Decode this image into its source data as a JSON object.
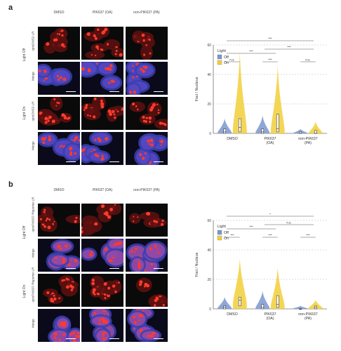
{
  "panels": [
    {
      "letter": "a",
      "columns": [
        "DMSO",
        "PIK637 (OA)",
        "non-PIK637 (PA)"
      ],
      "groups": [
        "Light Off",
        "Light On"
      ],
      "rows": [
        "optoDNS2-LR",
        "Merge",
        "optoDNS2-LR",
        "Merge"
      ],
      "chart_data": {
        "type": "violin",
        "ylabel": "Foci / Nucleus",
        "ylim": [
          0,
          60
        ],
        "yticks": [
          0,
          20,
          40,
          60
        ],
        "categories": [
          "DMSO",
          "PIK637\n(OA)",
          "non-PIK637\n(PA)"
        ],
        "legend": {
          "title": "Light",
          "entries": [
            "Off",
            "On"
          ],
          "placement": "top-left"
        },
        "series": [
          {
            "name": "Off",
            "color": "#7b96cf",
            "median": [
              1,
              1,
              0
            ],
            "q1": [
              0,
              0,
              0
            ],
            "q3": [
              3,
              3,
              1
            ],
            "max": [
              10,
              12,
              3
            ]
          },
          {
            "name": "On",
            "color": "#f2cf3a",
            "median": [
              4,
              3,
              0
            ],
            "q1": [
              1,
              1,
              0
            ],
            "q3": [
              10,
              13,
              2
            ],
            "max": [
              55,
              46,
              8
            ]
          }
        ],
        "significance": [
          "***",
          "***",
          "***",
          "n.s.",
          "***",
          "n.s."
        ]
      }
    },
    {
      "letter": "b",
      "columns": [
        "DMSO",
        "PIK637 (OA)",
        "non-PIK637 (PA)"
      ],
      "groups": [
        "Light Off",
        "Light On"
      ],
      "rows": [
        "optoPIK637-Reporter-LR",
        "Merge",
        "optoPIK637-Reporter-LR",
        "Merge"
      ],
      "chart_data": {
        "type": "violin",
        "ylabel": "Foci / Nucleus",
        "ylim": [
          0,
          60
        ],
        "yticks": [
          0,
          20,
          40,
          60
        ],
        "categories": [
          "DMSO",
          "PIK637\n(OA)",
          "non-PIK637\n(PA)"
        ],
        "legend": {
          "title": "Light",
          "entries": [
            "Off",
            "On"
          ],
          "placement": "top-left"
        },
        "series": [
          {
            "name": "Off",
            "color": "#7b96cf",
            "median": [
              1,
              1,
              0
            ],
            "q1": [
              0,
              0,
              0
            ],
            "q3": [
              2,
              3,
              0
            ],
            "max": [
              8,
              12,
              2
            ]
          },
          {
            "name": "On",
            "color": "#f2cf3a",
            "median": [
              6,
              3,
              1
            ],
            "q1": [
              2,
              1,
              0
            ],
            "q3": [
              8,
              9,
              2
            ],
            "max": [
              34,
              28,
              6
            ]
          }
        ],
        "significance": [
          "***",
          "*",
          "n.s.",
          "***",
          "***",
          "***"
        ]
      }
    }
  ]
}
